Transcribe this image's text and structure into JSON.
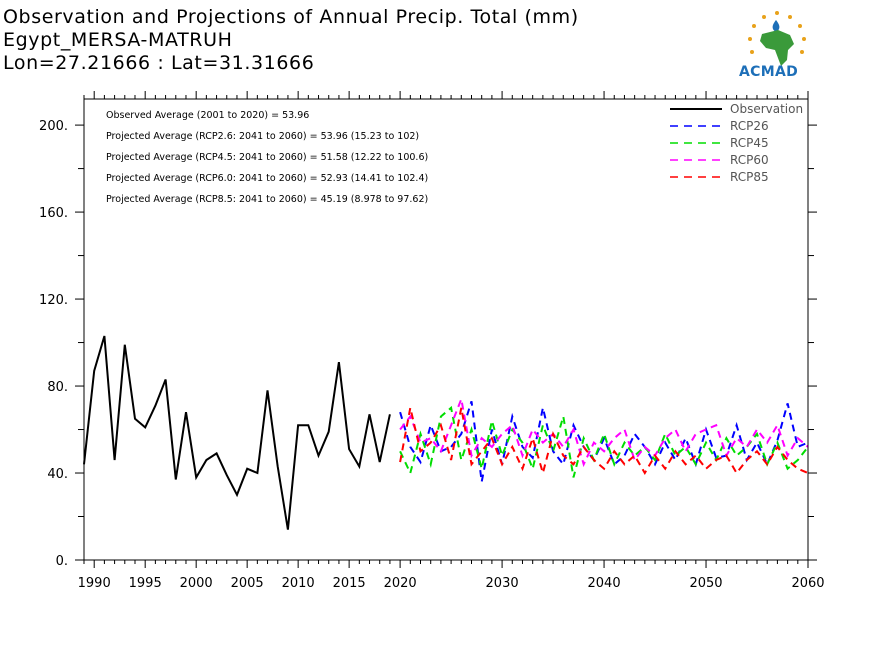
{
  "header": {
    "title_line1": "Observation and Projections of Annual Precip. Total (mm)",
    "title_line2": "Egypt_MERSA-MATRUH",
    "title_line3": "Lon=27.21666 : Lat=31.31666"
  },
  "logo": {
    "text": "ACMAD",
    "icon": "africa-map-logo-icon"
  },
  "annotations": [
    "Observed Average (2001 to 2020) = 53.96",
    "Projected Average (RCP2.6: 2041 to 2060) = 53.96 (15.23 to 102)",
    "Projected Average (RCP4.5: 2041 to 2060) = 51.58 (12.22 to 100.6)",
    "Projected Average (RCP6.0: 2041 to 2060) = 52.93 (14.41 to 102.4)",
    "Projected Average (RCP8.5: 2041 to 2060) = 45.19 (8.978 to 97.62)"
  ],
  "chart_data": {
    "type": "line",
    "xlim": [
      1989,
      2060
    ],
    "ylim": [
      0,
      212
    ],
    "x_ticks": [
      1990,
      1995,
      2000,
      2005,
      2010,
      2015,
      2020,
      2030,
      2040,
      2050,
      2060
    ],
    "y_ticks": [
      0,
      40,
      80,
      120,
      160,
      200
    ],
    "y_tick_labels": [
      "0.",
      "40.",
      "80.",
      "120.",
      "160.",
      "200."
    ],
    "legend_position": "top-right",
    "series": [
      {
        "name": "Observation",
        "color": "#000000",
        "dashed": false,
        "x": [
          1989,
          1990,
          1991,
          1992,
          1993,
          1994,
          1995,
          1996,
          1997,
          1998,
          1999,
          2000,
          2001,
          2002,
          2003,
          2004,
          2005,
          2006,
          2007,
          2008,
          2009,
          2010,
          2011,
          2012,
          2013,
          2014,
          2015,
          2016,
          2017,
          2018,
          2019
        ],
        "y": [
          44,
          87,
          103,
          46,
          99,
          65,
          61,
          71,
          83,
          37,
          68,
          38,
          46,
          49,
          39,
          30,
          42,
          40,
          78,
          43,
          14,
          62,
          62,
          48,
          59,
          91,
          51,
          43,
          67,
          45,
          67
        ]
      },
      {
        "name": "RCP26",
        "color": "#0000ff",
        "dashed": true,
        "x": [
          2020,
          2021,
          2022,
          2023,
          2024,
          2025,
          2026,
          2027,
          2028,
          2029,
          2030,
          2031,
          2032,
          2033,
          2034,
          2035,
          2036,
          2037,
          2038,
          2039,
          2040,
          2041,
          2042,
          2043,
          2044,
          2045,
          2046,
          2047,
          2048,
          2049,
          2050,
          2051,
          2052,
          2053,
          2054,
          2055,
          2056,
          2057,
          2058,
          2059,
          2060
        ],
        "y": [
          68,
          52,
          45,
          62,
          50,
          52,
          58,
          73,
          36,
          60,
          44,
          66,
          52,
          47,
          70,
          50,
          44,
          62,
          52,
          46,
          56,
          44,
          48,
          58,
          52,
          44,
          54,
          46,
          56,
          44,
          60,
          47,
          48,
          62,
          46,
          54,
          44,
          55,
          72,
          52,
          54
        ]
      },
      {
        "name": "RCP45",
        "color": "#00dd00",
        "dashed": true,
        "x": [
          2020,
          2021,
          2022,
          2023,
          2024,
          2025,
          2026,
          2027,
          2028,
          2029,
          2030,
          2031,
          2032,
          2033,
          2034,
          2035,
          2036,
          2037,
          2038,
          2039,
          2040,
          2041,
          2042,
          2043,
          2044,
          2045,
          2046,
          2047,
          2048,
          2049,
          2050,
          2051,
          2052,
          2053,
          2054,
          2055,
          2056,
          2057,
          2058,
          2059,
          2060
        ],
        "y": [
          50,
          40,
          58,
          44,
          66,
          70,
          46,
          60,
          42,
          64,
          48,
          60,
          54,
          42,
          62,
          50,
          66,
          38,
          56,
          46,
          58,
          44,
          54,
          48,
          52,
          46,
          58,
          48,
          52,
          44,
          54,
          46,
          56,
          48,
          52,
          58,
          44,
          54,
          42,
          46,
          52
        ]
      },
      {
        "name": "RCP60",
        "color": "#ff00ff",
        "dashed": true,
        "x": [
          2020,
          2021,
          2022,
          2023,
          2024,
          2025,
          2026,
          2027,
          2028,
          2029,
          2030,
          2031,
          2032,
          2033,
          2034,
          2035,
          2036,
          2037,
          2038,
          2039,
          2040,
          2041,
          2042,
          2043,
          2044,
          2045,
          2046,
          2047,
          2048,
          2049,
          2050,
          2051,
          2052,
          2053,
          2054,
          2055,
          2056,
          2057,
          2058,
          2059,
          2060
        ],
        "y": [
          60,
          66,
          54,
          56,
          50,
          62,
          74,
          48,
          56,
          52,
          58,
          62,
          48,
          60,
          54,
          58,
          52,
          60,
          44,
          54,
          50,
          56,
          60,
          46,
          52,
          48,
          56,
          60,
          50,
          58,
          60,
          62,
          48,
          56,
          52,
          60,
          54,
          62,
          48,
          56,
          52
        ]
      },
      {
        "name": "RCP85",
        "color": "#ff0000",
        "dashed": true,
        "x": [
          2020,
          2021,
          2022,
          2023,
          2024,
          2025,
          2026,
          2027,
          2028,
          2029,
          2030,
          2031,
          2032,
          2033,
          2034,
          2035,
          2036,
          2037,
          2038,
          2039,
          2040,
          2041,
          2042,
          2043,
          2044,
          2045,
          2046,
          2047,
          2048,
          2049,
          2050,
          2051,
          2052,
          2053,
          2054,
          2055,
          2056,
          2057,
          2058,
          2059,
          2060
        ],
        "y": [
          45,
          70,
          50,
          54,
          62,
          46,
          70,
          44,
          50,
          56,
          44,
          52,
          42,
          56,
          40,
          58,
          48,
          44,
          52,
          46,
          42,
          50,
          44,
          48,
          40,
          48,
          42,
          50,
          44,
          48,
          42,
          46,
          48,
          40,
          46,
          50,
          44,
          52,
          46,
          42,
          40
        ]
      }
    ]
  }
}
